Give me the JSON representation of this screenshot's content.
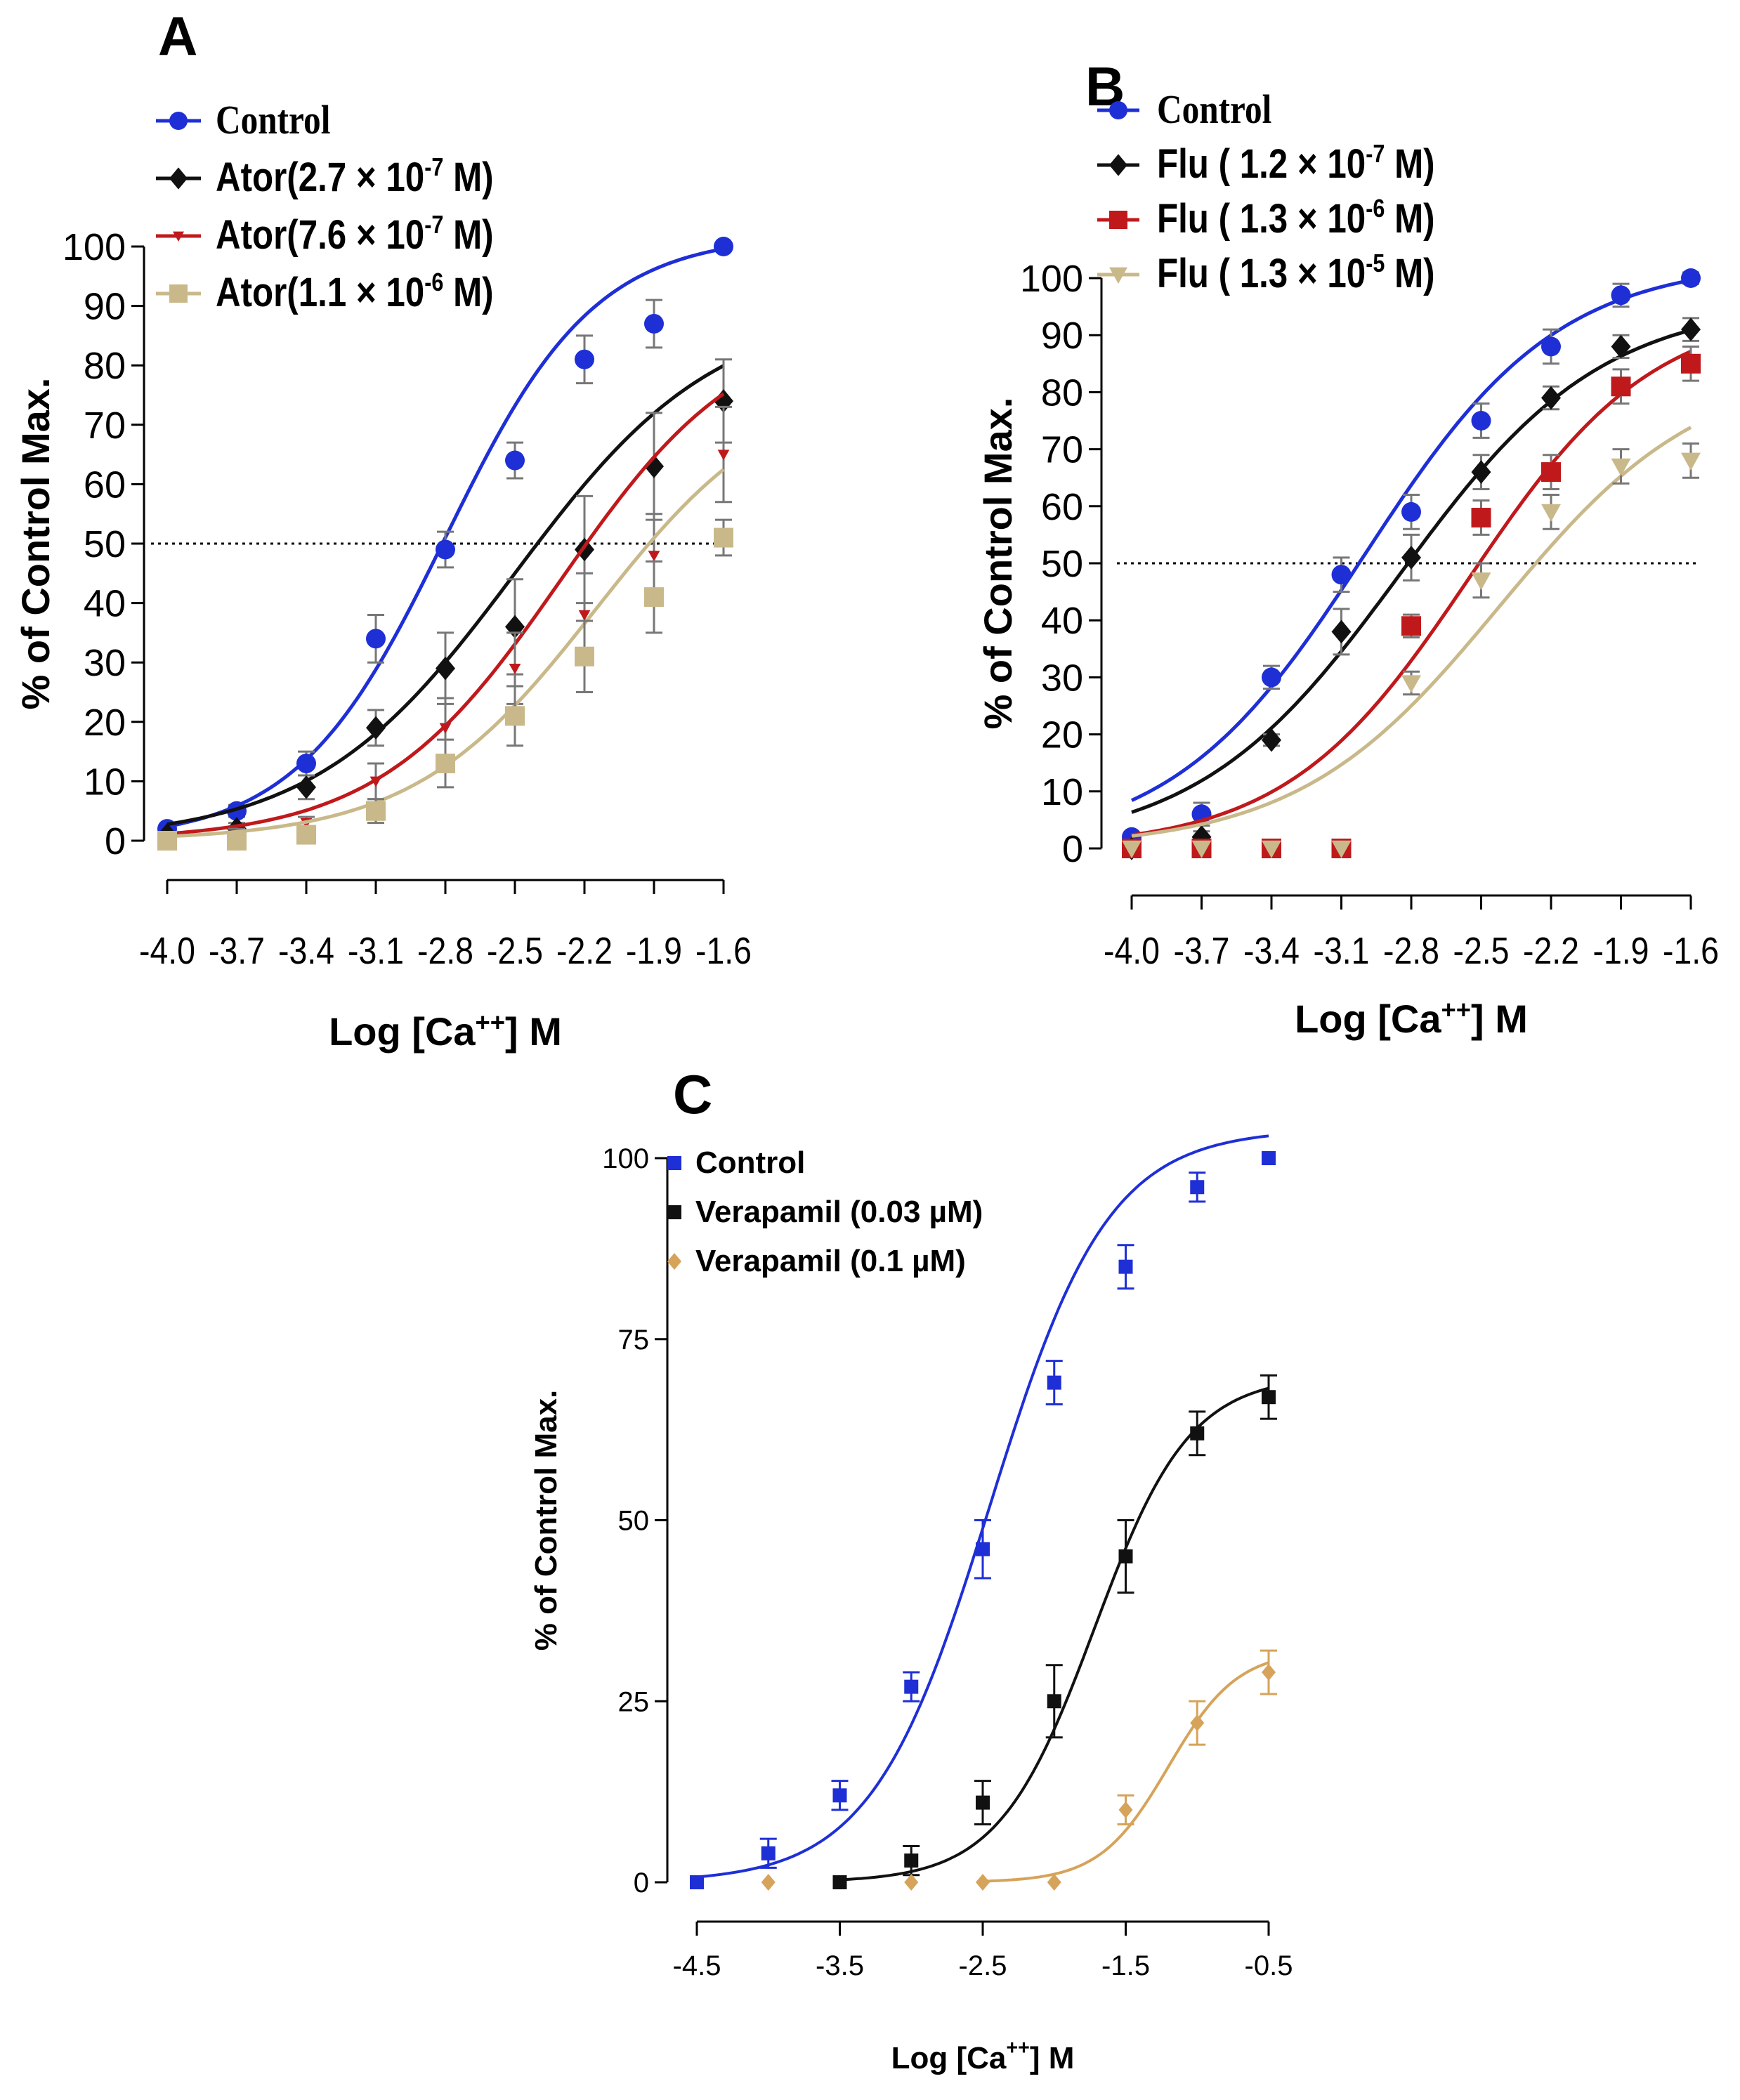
{
  "chart_data": [
    {
      "panel": "A",
      "type": "line",
      "xlabel": "Log [Ca",
      "xlabel_sup": "++",
      "xlabel_tail": "] M",
      "ylabel": "% of Control Max.",
      "xlim": [
        -4.0,
        -1.6
      ],
      "ylim": [
        0,
        100
      ],
      "xticks": [
        "-4.0",
        "-3.7",
        "-3.4",
        "-3.1",
        "-2.8",
        "-2.5",
        "-2.2",
        "-1.9",
        "-1.6"
      ],
      "yticks": [
        "0",
        "10",
        "20",
        "30",
        "40",
        "50",
        "60",
        "70",
        "80",
        "90",
        "100"
      ],
      "reference_line": 50,
      "legend_position": "top-left",
      "series": [
        {
          "name": "Control",
          "legend_pre": "Control",
          "color": "#1f2fd6",
          "marker": "circle",
          "x": [
            -4.0,
            -3.7,
            -3.4,
            -3.1,
            -2.8,
            -2.5,
            -2.2,
            -1.9,
            -1.6
          ],
          "y": [
            2,
            5,
            13,
            34,
            49,
            64,
            81,
            87,
            100
          ],
          "err": [
            0,
            1,
            2,
            4,
            3,
            3,
            4,
            4,
            0
          ],
          "fit": {
            "ec50": -2.8,
            "hill": 1.35,
            "top": 102
          }
        },
        {
          "name": "Ator(2.7 × 10-7 M)",
          "legend_pre": "Ator(2.7 × 10",
          "legend_exp": "-7",
          "legend_post": " M)",
          "color": "#111111",
          "marker": "diamond",
          "x": [
            -4.0,
            -3.7,
            -3.4,
            -3.1,
            -2.8,
            -2.5,
            -2.2,
            -1.9,
            -1.6
          ],
          "y": [
            1,
            2,
            9,
            19,
            29,
            36,
            49,
            63,
            74
          ],
          "err": [
            0,
            1,
            2,
            3,
            6,
            8,
            9,
            9,
            7
          ],
          "fit": {
            "ec50": -2.5,
            "hill": 1.0,
            "top": 90
          }
        },
        {
          "name": "Ator(7.6 × 10-7 M)",
          "legend_pre": "Ator(7.6 × 10",
          "legend_exp": "-7",
          "legend_post": " M)",
          "color": "#c0191c",
          "marker": "triangle-down",
          "x": [
            -4.0,
            -3.7,
            -3.4,
            -3.1,
            -2.8,
            -2.5,
            -2.2,
            -1.9,
            -1.6
          ],
          "y": [
            0,
            1,
            3,
            10,
            19,
            29,
            38,
            48,
            65
          ],
          "err": [
            0,
            1,
            1,
            3,
            5,
            6,
            7,
            7,
            8
          ],
          "fit": {
            "ec50": -2.3,
            "hill": 1.1,
            "top": 88
          }
        },
        {
          "name": "Ator(1.1 × 10-6 M)",
          "legend_pre": "Ator(1.1 × 10",
          "legend_exp": "-6",
          "legend_post": " M)",
          "color": "#c9b98a",
          "marker": "square",
          "x": [
            -4.0,
            -3.7,
            -3.4,
            -3.1,
            -2.8,
            -2.5,
            -2.2,
            -1.9,
            -1.6
          ],
          "y": [
            0,
            0,
            1,
            5,
            13,
            21,
            31,
            41,
            51
          ],
          "err": [
            0,
            0,
            1,
            2,
            4,
            5,
            6,
            6,
            3
          ],
          "fit": {
            "ec50": -2.15,
            "hill": 1.1,
            "top": 78
          }
        }
      ]
    },
    {
      "panel": "B",
      "type": "line",
      "xlabel": "Log [Ca",
      "xlabel_sup": "++",
      "xlabel_tail": "] M",
      "ylabel": "% of Control Max.",
      "xlim": [
        -4.0,
        -1.6
      ],
      "ylim": [
        0,
        100
      ],
      "xticks": [
        "-4.0",
        "-3.7",
        "-3.4",
        "-3.1",
        "-2.8",
        "-2.5",
        "-2.2",
        "-1.9",
        "-1.6"
      ],
      "yticks": [
        "0",
        "10",
        "20",
        "30",
        "40",
        "50",
        "60",
        "70",
        "80",
        "90",
        "100"
      ],
      "reference_line": 50,
      "legend_position": "top-left",
      "series": [
        {
          "name": "Control",
          "legend_pre": "Control",
          "color": "#1f2fd6",
          "marker": "circle",
          "x": [
            -4.0,
            -3.7,
            -3.4,
            -3.1,
            -2.8,
            -2.5,
            -2.2,
            -1.9,
            -1.6
          ],
          "y": [
            2,
            6,
            30,
            48,
            59,
            75,
            88,
            97,
            100
          ],
          "err": [
            0,
            2,
            2,
            3,
            3,
            3,
            3,
            2,
            1
          ],
          "fit": {
            "ec50": -3.0,
            "hill": 1.05,
            "top": 103
          }
        },
        {
          "name": "Flu ( 1.2 × 10-7 M)",
          "legend_pre": "Flu ( 1.2 × 10",
          "legend_exp": "-7",
          "legend_post": " M)",
          "color": "#111111",
          "marker": "diamond",
          "x": [
            -4.0,
            -3.7,
            -3.4,
            -3.1,
            -2.8,
            -2.5,
            -2.2,
            -1.9,
            -1.6
          ],
          "y": [
            0,
            2,
            19,
            38,
            51,
            66,
            79,
            88,
            91
          ],
          "err": [
            0,
            1,
            1,
            4,
            4,
            3,
            2,
            2,
            2
          ],
          "fit": {
            "ec50": -2.85,
            "hill": 1.0,
            "top": 96
          }
        },
        {
          "name": "Flu ( 1.3 × 10-6 M)",
          "legend_pre": "Flu ( 1.3 × 10",
          "legend_exp": "-6",
          "legend_post": " M)",
          "color": "#c0191c",
          "marker": "square",
          "x": [
            -4.0,
            -3.7,
            -3.4,
            -3.1,
            -2.8,
            -2.5,
            -2.2,
            -1.9,
            -1.6
          ],
          "y": [
            0,
            0,
            0,
            0,
            39,
            58,
            66,
            81,
            85
          ],
          "err": [
            0,
            0,
            0,
            0,
            2,
            3,
            3,
            3,
            3
          ],
          "fit": {
            "ec50": -2.55,
            "hill": 1.1,
            "top": 95
          }
        },
        {
          "name": "Flu ( 1.3 × 10-5 M)",
          "legend_pre": "Flu ( 1.3 × 10",
          "legend_exp": "-5",
          "legend_post": " M)",
          "color": "#c9b98a",
          "marker": "triangle-down",
          "x": [
            -4.0,
            -3.7,
            -3.4,
            -3.1,
            -2.8,
            -2.5,
            -2.2,
            -1.9,
            -1.6
          ],
          "y": [
            0,
            0,
            0,
            0,
            29,
            47,
            59,
            67,
            68
          ],
          "err": [
            0,
            0,
            0,
            0,
            2,
            3,
            3,
            3,
            3
          ],
          "fit": {
            "ec50": -2.42,
            "hill": 1.0,
            "top": 85
          }
        }
      ]
    },
    {
      "panel": "C",
      "type": "line",
      "xlabel": "Log [Ca",
      "xlabel_sup": "++",
      "xlabel_tail": "] M",
      "ylabel": "% of Control Max.",
      "xlim": [
        -4.5,
        -0.5
      ],
      "ylim": [
        0,
        100
      ],
      "xticks": [
        "-4.5",
        "-3.5",
        "-2.5",
        "-1.5",
        "-0.5"
      ],
      "yticks": [
        "0",
        "25",
        "50",
        "75",
        "100"
      ],
      "legend_position": "top-left",
      "series": [
        {
          "name": "Control",
          "legend_pre": "Control",
          "color": "#1f2fd6",
          "marker": "square",
          "x": [
            -4.5,
            -4.0,
            -3.5,
            -3.0,
            -2.5,
            -2.0,
            -1.5,
            -1.0,
            -0.5
          ],
          "y": [
            0,
            4,
            12,
            27,
            46,
            69,
            85,
            96,
            100
          ],
          "err": [
            0,
            2,
            2,
            2,
            4,
            3,
            3,
            2,
            0
          ],
          "fit": {
            "ec50": -2.45,
            "hill": 1.05,
            "top": 104,
            "start": -4.5
          }
        },
        {
          "name": "Verapamil (0.03 µM)",
          "legend_pre": "Verapamil (0.03 µM)",
          "color": "#111111",
          "marker": "square",
          "x": [
            -3.5,
            -3.0,
            -2.5,
            -2.0,
            -1.5,
            -1.0,
            -0.5
          ],
          "y": [
            0,
            3,
            11,
            25,
            45,
            62,
            67
          ],
          "err": [
            0,
            2,
            3,
            5,
            5,
            3,
            3
          ],
          "fit": {
            "ec50": -1.72,
            "hill": 1.3,
            "top": 70,
            "start": -3.5
          }
        },
        {
          "name": "Verapamil (0.1 µM)",
          "legend_pre": "Verapamil (0.1 µM)",
          "color": "#d6a35a",
          "marker": "diamond",
          "x": [
            -4.0,
            -3.0,
            -2.5,
            -2.0,
            -1.5,
            -1.0,
            -0.5
          ],
          "y": [
            0,
            0,
            0,
            0,
            10,
            22,
            29
          ],
          "err": [
            0,
            0,
            0,
            0,
            2,
            3,
            3
          ],
          "fit": {
            "ec50": -1.2,
            "hill": 1.8,
            "top": 32,
            "start": -2.5
          }
        }
      ]
    }
  ]
}
